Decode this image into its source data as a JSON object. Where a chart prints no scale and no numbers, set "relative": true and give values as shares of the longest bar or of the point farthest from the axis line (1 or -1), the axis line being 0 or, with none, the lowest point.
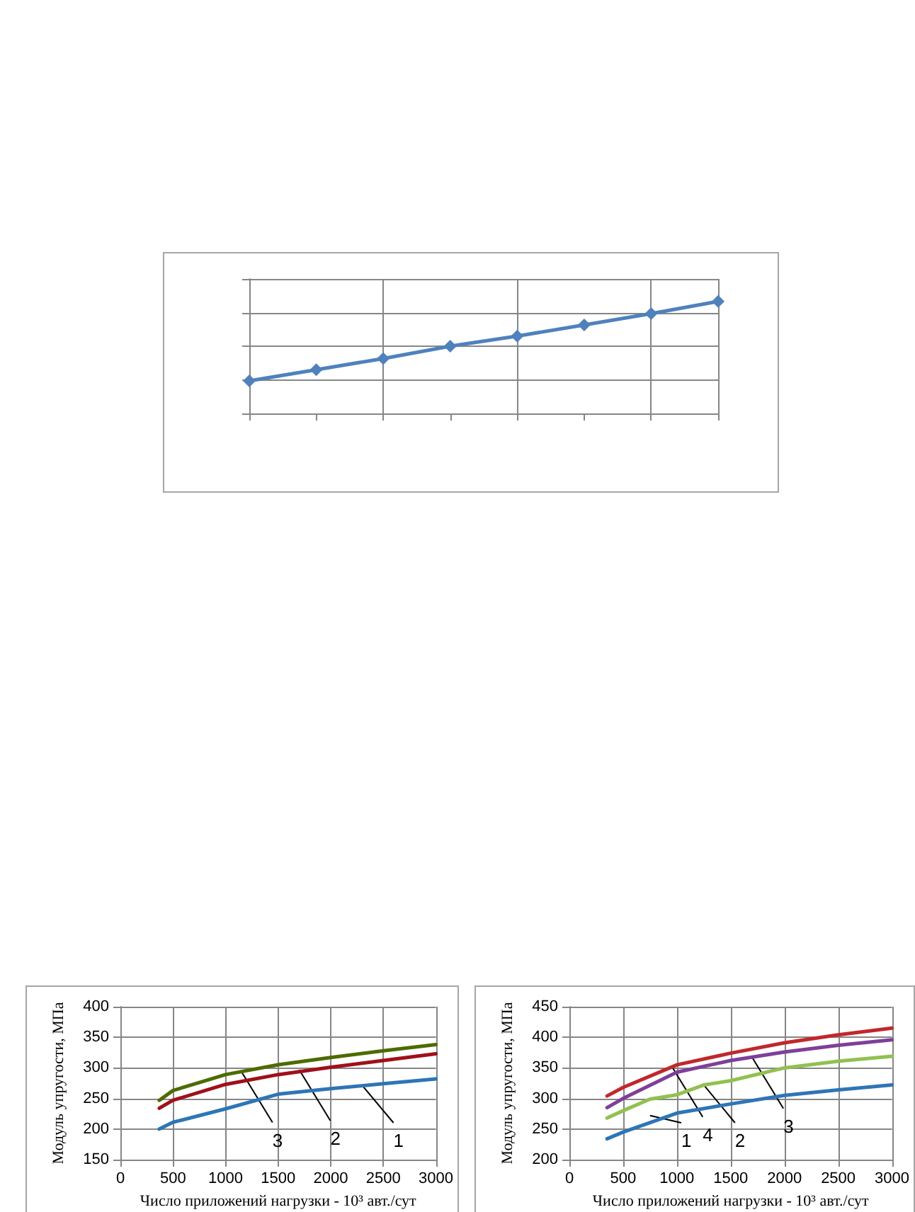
{
  "chart_data": [
    {
      "type": "line",
      "relative": true,
      "categories": [
        null,
        null,
        null,
        null,
        null,
        null,
        null,
        null
      ],
      "marker": "diamond",
      "grid": true,
      "series": [
        {
          "color": "#4f81bd",
          "values": [
            0.29,
            0.39,
            0.49,
            0.6,
            0.69,
            0.79,
            0.89,
            1
          ]
        }
      ]
    },
    {
      "type": "line",
      "ylabel": "Модуль упругости, МПа",
      "xlabel": "Число приложений нагрузки - 10³ авт./сут",
      "xlim": [
        0,
        3000
      ],
      "xticks": [
        0,
        500,
        1000,
        1500,
        2000,
        2500,
        3000
      ],
      "ylim": [
        150,
        400
      ],
      "yticks": [
        150,
        200,
        250,
        300,
        350,
        400
      ],
      "grid": true,
      "marker": "none",
      "series": [
        {
          "color": "#2e75b6",
          "x": [
            370,
            500,
            1000,
            1500,
            2000,
            2500,
            3000
          ],
          "values": [
            200,
            211,
            233,
            257,
            266,
            274,
            282
          ]
        },
        {
          "color": "#a0101a",
          "x": [
            370,
            500,
            1000,
            1500,
            2000,
            2500,
            3000
          ],
          "values": [
            234,
            247,
            273,
            289,
            301,
            312,
            323
          ]
        },
        {
          "color": "#4d6b00",
          "x": [
            370,
            500,
            1000,
            1500,
            2000,
            2500,
            3000
          ],
          "values": [
            247,
            263,
            289,
            305,
            317,
            328,
            338
          ]
        }
      ],
      "annotations": [
        {
          "text": "1",
          "x": 2300,
          "y": 271
        },
        {
          "text": "2",
          "x": 1700,
          "y": 297
        },
        {
          "text": "3",
          "x": 1150,
          "y": 294
        }
      ]
    },
    {
      "type": "line",
      "ylabel": "Модуль упругости, МПа",
      "xlabel": "Число приложений нагрузки - 10³ авт./сут",
      "xlim": [
        0,
        3000
      ],
      "xticks": [
        0,
        500,
        1000,
        1500,
        2000,
        2500,
        3000
      ],
      "ylim": [
        200,
        450
      ],
      "yticks": [
        200,
        250,
        300,
        350,
        400,
        450
      ],
      "grid": true,
      "marker": "none",
      "series": [
        {
          "color": "#2e75b6",
          "x": [
            350,
            500,
            1000,
            1500,
            2000,
            2500,
            3000
          ],
          "values": [
            234,
            245,
            276,
            291,
            305,
            314,
            322
          ]
        },
        {
          "color": "#92c050",
          "x": [
            350,
            500,
            750,
            1000,
            1250,
            1500,
            2000,
            2500,
            3000
          ],
          "values": [
            268,
            280,
            299,
            306,
            322,
            329,
            350,
            361,
            369
          ]
        },
        {
          "color": "#7f3f98",
          "x": [
            350,
            500,
            1000,
            1500,
            2000,
            2500,
            3000
          ],
          "values": [
            285,
            300,
            343,
            362,
            376,
            387,
            396
          ]
        },
        {
          "color": "#c0282d",
          "x": [
            350,
            500,
            1000,
            1500,
            2000,
            2500,
            3000
          ],
          "values": [
            304,
            318,
            355,
            374,
            391,
            404,
            415
          ]
        }
      ],
      "annotations": [
        {
          "text": "1",
          "x": 750,
          "y": 272
        },
        {
          "text": "2",
          "x": 1250,
          "y": 322
        },
        {
          "text": "3",
          "x": 1700,
          "y": 367
        },
        {
          "text": "4",
          "x": 950,
          "y": 353
        }
      ]
    }
  ]
}
